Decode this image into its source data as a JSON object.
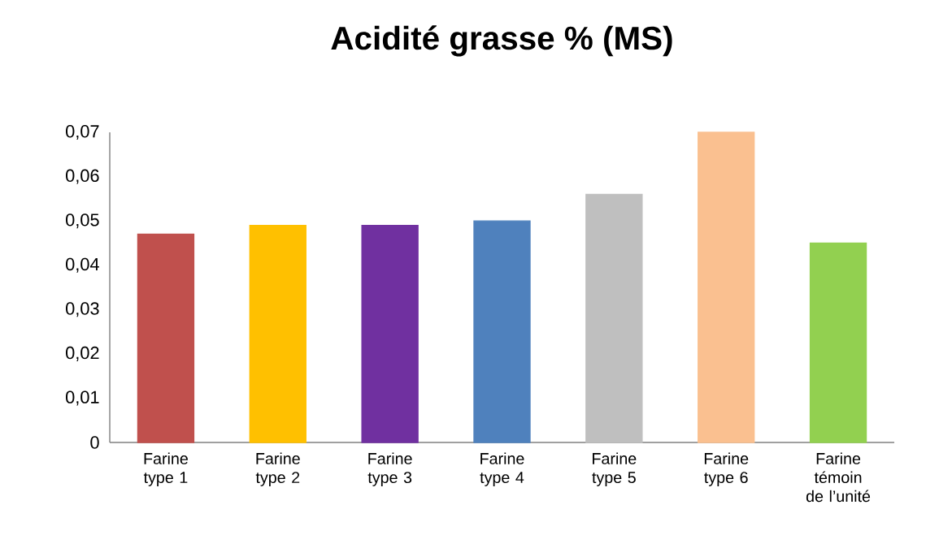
{
  "chart_data": {
    "type": "bar",
    "title": "Acidité grasse % (MS)",
    "categories": [
      "Farine type 1",
      "Farine type 2",
      "Farine type 3",
      "Farine type 4",
      "Farine type 5",
      "Farine type 6",
      "Farine témoin de l’unité"
    ],
    "values": [
      0.047,
      0.049,
      0.049,
      0.05,
      0.056,
      0.07,
      0.045
    ],
    "colors": [
      "#c0504d",
      "#ffc000",
      "#7030a0",
      "#4f81bd",
      "#bfbfbf",
      "#fac090",
      "#92d050"
    ],
    "ylim": [
      0,
      0.07
    ],
    "yticks": [
      {
        "value": 0,
        "label": "0"
      },
      {
        "value": 0.01,
        "label": "0,01"
      },
      {
        "value": 0.02,
        "label": "0,02"
      },
      {
        "value": 0.03,
        "label": "0,03"
      },
      {
        "value": 0.04,
        "label": "0,04"
      },
      {
        "value": 0.05,
        "label": "0,05"
      },
      {
        "value": 0.06,
        "label": "0,06"
      },
      {
        "value": 0.07,
        "label": "0,07"
      }
    ],
    "grid": false
  }
}
